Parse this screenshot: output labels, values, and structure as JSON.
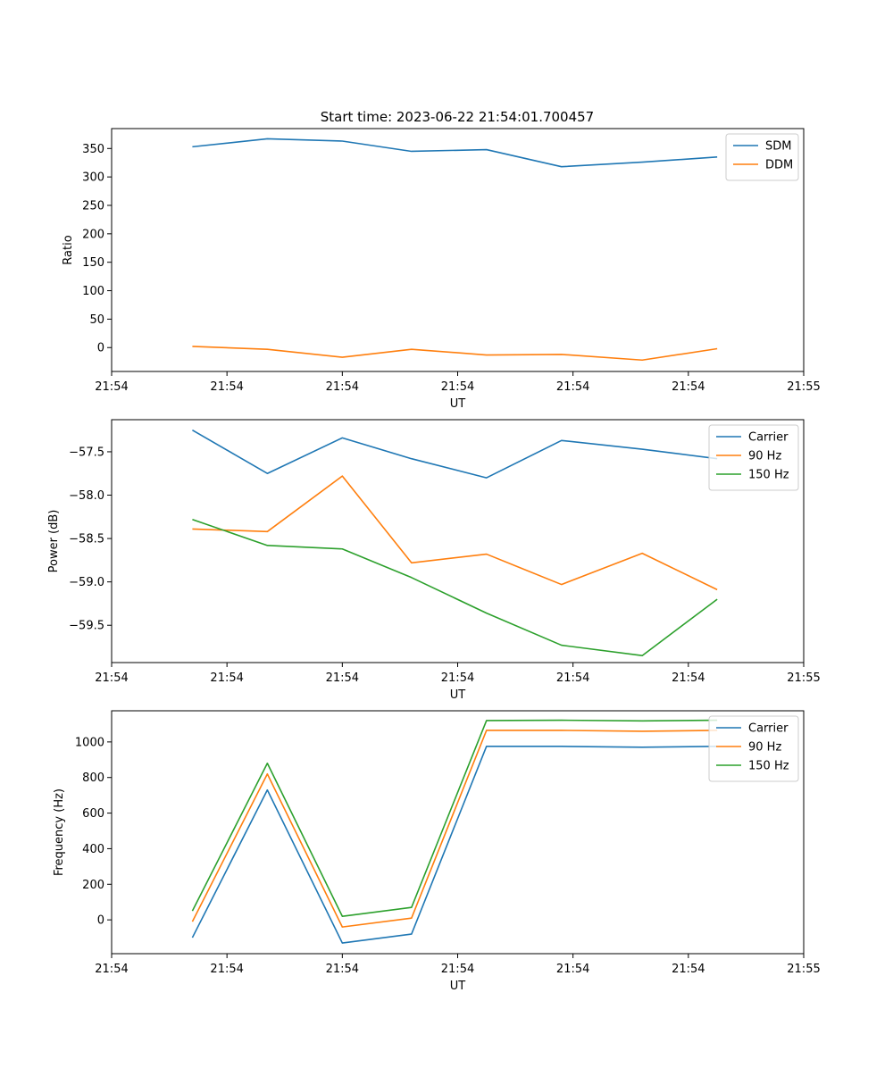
{
  "title": "Start time: 2023-06-22 21:54:01.700457",
  "colors": {
    "blue": "#1f77b4",
    "orange": "#ff7f0e",
    "green": "#2ca02c"
  },
  "chart_data": [
    {
      "type": "line",
      "xlabel": "UT",
      "ylabel": "Ratio",
      "x": [
        0.7,
        1.35,
        2.0,
        2.6,
        3.25,
        3.9,
        4.6,
        5.25
      ],
      "xlim": [
        0,
        6
      ],
      "ylim": [
        -42,
        385
      ],
      "xticks": [
        0,
        1,
        2,
        3,
        4,
        5,
        6
      ],
      "xtick_labels": [
        "21:54",
        "21:54",
        "21:54",
        "21:54",
        "21:54",
        "21:54",
        "21:55"
      ],
      "yticks": [
        0,
        50,
        100,
        150,
        200,
        250,
        300,
        350
      ],
      "ytick_labels": [
        "0",
        "50",
        "100",
        "150",
        "200",
        "250",
        "300",
        "350"
      ],
      "legend_position": "top-right",
      "series": [
        {
          "name": "SDM",
          "color": "#1f77b4",
          "values": [
            353,
            367,
            363,
            345,
            348,
            318,
            326,
            335
          ]
        },
        {
          "name": "DDM",
          "color": "#ff7f0e",
          "values": [
            2,
            -3,
            -17,
            -3,
            -13,
            -12,
            -22,
            -2
          ]
        }
      ]
    },
    {
      "type": "line",
      "xlabel": "UT",
      "ylabel": "Power (dB)",
      "x": [
        0.7,
        1.35,
        2.0,
        2.6,
        3.25,
        3.9,
        4.6,
        5.25
      ],
      "xlim": [
        0,
        6
      ],
      "ylim": [
        -59.93,
        -57.13
      ],
      "xticks": [
        0,
        1,
        2,
        3,
        4,
        5,
        6
      ],
      "xtick_labels": [
        "21:54",
        "21:54",
        "21:54",
        "21:54",
        "21:54",
        "21:54",
        "21:55"
      ],
      "yticks": [
        -57.5,
        -58.0,
        -58.5,
        -59.0,
        -59.5
      ],
      "ytick_labels": [
        "−57.5",
        "−58.0",
        "−58.5",
        "−59.0",
        "−59.5"
      ],
      "legend_position": "top-right",
      "series": [
        {
          "name": "Carrier",
          "color": "#1f77b4",
          "values": [
            -57.25,
            -57.75,
            -57.34,
            -57.58,
            -57.8,
            -57.37,
            -57.47,
            -57.58
          ]
        },
        {
          "name": "90 Hz",
          "color": "#ff7f0e",
          "values": [
            -58.39,
            -58.42,
            -57.78,
            -58.78,
            -58.68,
            -59.03,
            -58.67,
            -59.09
          ]
        },
        {
          "name": "150 Hz",
          "color": "#2ca02c",
          "values": [
            -58.28,
            -58.58,
            -58.62,
            -58.95,
            -59.36,
            -59.73,
            -59.85,
            -59.2
          ]
        }
      ]
    },
    {
      "type": "line",
      "xlabel": "UT",
      "ylabel": "Frequency (Hz)",
      "x": [
        0.7,
        1.35,
        2.0,
        2.6,
        3.25,
        3.9,
        4.6,
        5.25
      ],
      "xlim": [
        0,
        6
      ],
      "ylim": [
        -190,
        1175
      ],
      "xticks": [
        0,
        1,
        2,
        3,
        4,
        5,
        6
      ],
      "xtick_labels": [
        "21:54",
        "21:54",
        "21:54",
        "21:54",
        "21:54",
        "21:54",
        "21:55"
      ],
      "yticks": [
        0,
        200,
        400,
        600,
        800,
        1000
      ],
      "ytick_labels": [
        "0",
        "200",
        "400",
        "600",
        "800",
        "1000"
      ],
      "legend_position": "top-right",
      "series": [
        {
          "name": "Carrier",
          "color": "#1f77b4",
          "values": [
            -100,
            730,
            -130,
            -80,
            975,
            975,
            970,
            975
          ]
        },
        {
          "name": "90 Hz",
          "color": "#ff7f0e",
          "values": [
            -10,
            820,
            -40,
            10,
            1065,
            1065,
            1060,
            1065
          ]
        },
        {
          "name": "150 Hz",
          "color": "#2ca02c",
          "values": [
            50,
            880,
            20,
            70,
            1120,
            1122,
            1118,
            1122
          ]
        }
      ]
    }
  ]
}
